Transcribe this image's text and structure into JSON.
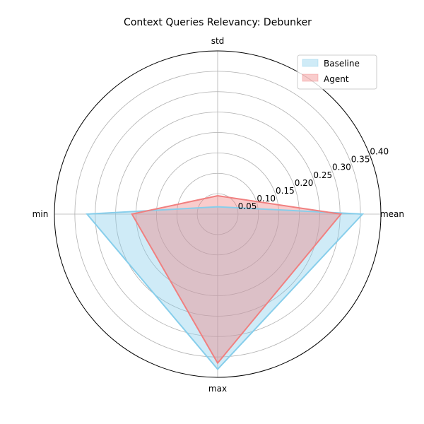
{
  "chart_data": {
    "type": "radar",
    "title": "Context Queries Relevancy: Debunker",
    "categories": [
      "mean",
      "std",
      "min",
      "max"
    ],
    "rlim": [
      0,
      0.4
    ],
    "rticks": [
      "0.05",
      "0.10",
      "0.15",
      "0.20",
      "0.25",
      "0.30",
      "0.35",
      "0.40"
    ],
    "rtick_values": [
      0.05,
      0.1,
      0.15,
      0.2,
      0.25,
      0.3,
      0.35,
      0.4
    ],
    "grid": true,
    "legend_position": "top-right",
    "series": [
      {
        "name": "Baseline",
        "values": [
          0.355,
          0.018,
          0.32,
          0.38
        ],
        "color": "#87ceeb"
      },
      {
        "name": "Agent",
        "values": [
          0.302,
          0.045,
          0.21,
          0.365
        ],
        "color": "#f08080"
      }
    ]
  }
}
